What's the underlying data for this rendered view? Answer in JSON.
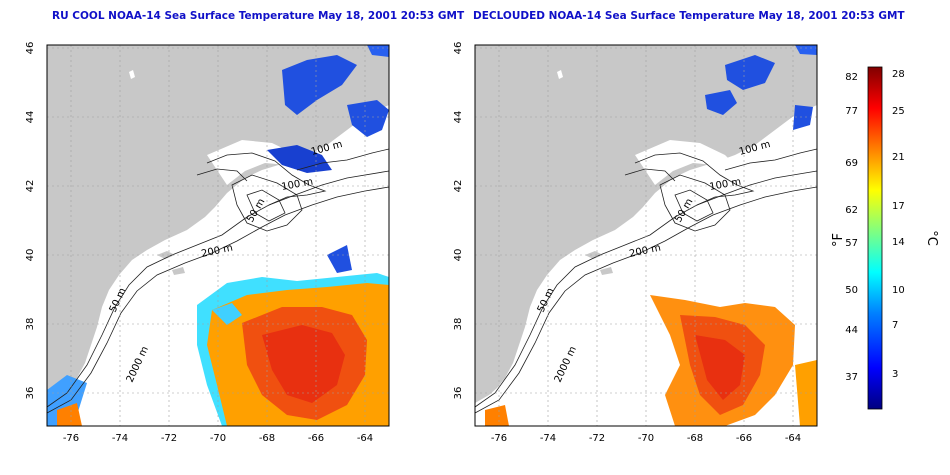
{
  "titles": {
    "left": "RU COOL NOAA-14 Sea Surface Temperature May 18, 2001 20:53 GMT",
    "right": "DECLOUDED NOAA-14 Sea Surface Temperature May 18, 2001 20:53 GMT"
  },
  "map": {
    "lon_ticks": [
      "-76",
      "-74",
      "-72",
      "-70",
      "-68",
      "-66",
      "-64"
    ],
    "lat_ticks": [
      "46",
      "44",
      "42",
      "40",
      "38",
      "36"
    ],
    "contour_labels": [
      "100 m",
      "100 m",
      "50 m",
      "200 m",
      "50 m",
      "2000 m"
    ],
    "colors": {
      "land": "#c8c8c8",
      "ocean": "#ffffff",
      "frame": "#000000"
    }
  },
  "colorbar": {
    "fahrenheit_ticks": [
      "82",
      "77",
      "69",
      "62",
      "57",
      "50",
      "44",
      "37"
    ],
    "celsius_ticks": [
      "28",
      "25",
      "21",
      "17",
      "14",
      "10",
      "7",
      "3"
    ],
    "unit_f": "°F",
    "unit_c": "°C",
    "gradient_colors": [
      "#000080",
      "#0000ff",
      "#0080ff",
      "#00ffff",
      "#80ff80",
      "#ffff00",
      "#ff8000",
      "#ff0000",
      "#800000"
    ]
  }
}
